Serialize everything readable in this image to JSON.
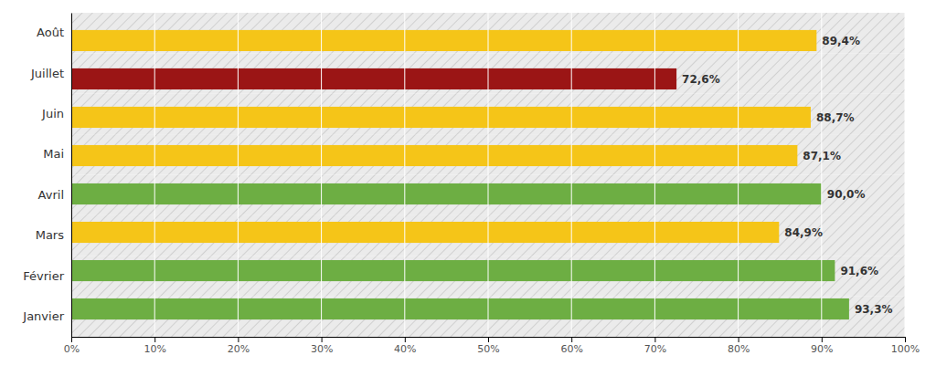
{
  "chart_data": {
    "type": "bar",
    "orientation": "horizontal",
    "categories": [
      "Août",
      "Juillet",
      "Juin",
      "Mai",
      "Avril",
      "Mars",
      "Février",
      "Janvier"
    ],
    "values": [
      89.4,
      72.6,
      88.7,
      87.1,
      90.0,
      84.9,
      91.6,
      93.3
    ],
    "value_labels": [
      "89,4%",
      "72,6%",
      "88,7%",
      "87,1%",
      "90,0%",
      "84,9%",
      "91,6%",
      "93,3%"
    ],
    "colors": [
      "#F5C518",
      "#9B1515",
      "#F5C518",
      "#F5C518",
      "#6DAE43",
      "#F5C518",
      "#6DAE43",
      "#6DAE43"
    ],
    "xlim": [
      0,
      100
    ],
    "xticks": [
      {
        "value": 0,
        "label": "0%"
      },
      {
        "value": 10,
        "label": "10%"
      },
      {
        "value": 20,
        "label": "20%"
      },
      {
        "value": 30,
        "label": "30%"
      },
      {
        "value": 40,
        "label": "40%"
      },
      {
        "value": 50,
        "label": "50%"
      },
      {
        "value": 60,
        "label": "60%"
      },
      {
        "value": 70,
        "label": "70%"
      },
      {
        "value": 80,
        "label": "80%"
      },
      {
        "value": 90,
        "label": "90%"
      },
      {
        "value": 100,
        "label": "100%"
      }
    ],
    "grid": true,
    "data_labels": true
  }
}
